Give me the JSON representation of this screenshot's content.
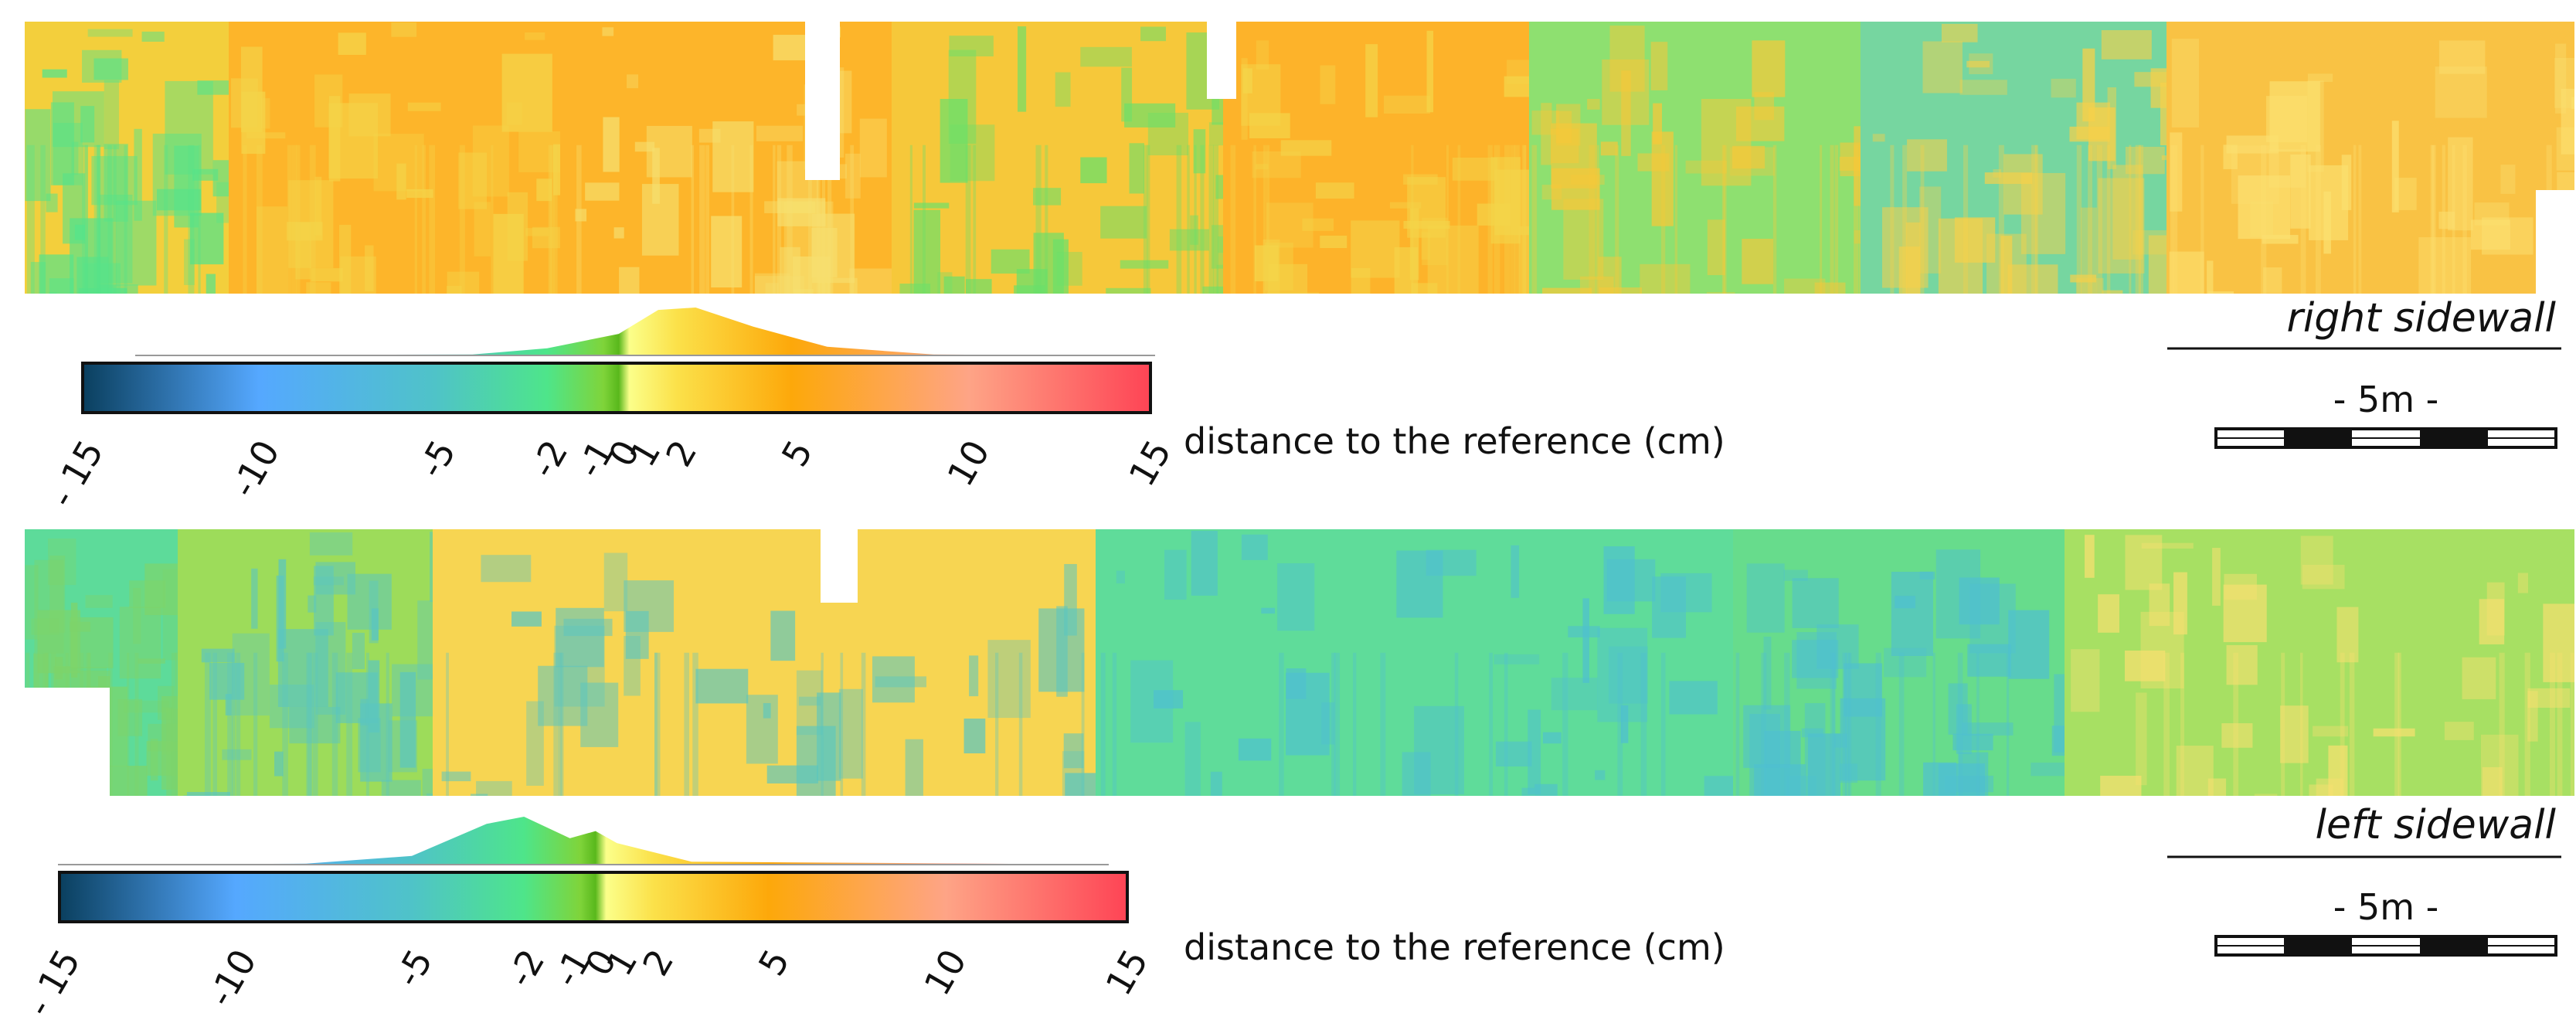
{
  "colorbar": {
    "label": "distance to the reference (cm)",
    "stops": [
      {
        "v": -15,
        "c": "#0a3f5e"
      },
      {
        "v": -10,
        "c": "#55a8ff"
      },
      {
        "v": -5,
        "c": "#4fc3c8"
      },
      {
        "v": -2,
        "c": "#4ee58a"
      },
      {
        "v": -0.6,
        "c": "#7fd43a"
      },
      {
        "v": 0,
        "c": "#59b81c"
      },
      {
        "v": 0.5,
        "c": "#fbff8a"
      },
      {
        "v": 2,
        "c": "#fbe14a"
      },
      {
        "v": 5,
        "c": "#fda80a"
      },
      {
        "v": 10,
        "c": "#fea486"
      },
      {
        "v": 15,
        "c": "#fe4455"
      }
    ],
    "ticks": [
      {
        "v": -15,
        "label": "- 15"
      },
      {
        "v": -10,
        "label": "-10"
      },
      {
        "v": -5,
        "label": "-5"
      },
      {
        "v": -2,
        "label": "-2"
      },
      {
        "v": -1,
        "label": "-1"
      },
      {
        "v": 0,
        "label": "0"
      },
      {
        "v": 1,
        "label": "1"
      },
      {
        "v": 2,
        "label": "2"
      },
      {
        "v": 5,
        "label": "5"
      },
      {
        "v": 10,
        "label": "10"
      },
      {
        "v": 15,
        "label": "15"
      }
    ]
  },
  "panels": [
    {
      "id": "right",
      "title": "right sidewall",
      "scale_label": "- 5m -",
      "segments": [
        {
          "from": 0,
          "to": 0.08,
          "fill": "#f3cf3c",
          "accent": "#57e38a"
        },
        {
          "from": 0.08,
          "to": 0.21,
          "fill": "#fdb52a",
          "accent": "#f4d54a"
        },
        {
          "from": 0.21,
          "to": 0.34,
          "fill": "#fdb52a",
          "accent": "#f6e070"
        },
        {
          "from": 0.34,
          "to": 0.47,
          "fill": "#f6c83a",
          "accent": "#6be06a"
        },
        {
          "from": 0.47,
          "to": 0.59,
          "fill": "#fdb32a",
          "accent": "#f4d54a"
        },
        {
          "from": 0.59,
          "to": 0.72,
          "fill": "#8ee070",
          "accent": "#f6c83a"
        },
        {
          "from": 0.72,
          "to": 0.84,
          "fill": "#76d6a0",
          "accent": "#f6d04a"
        },
        {
          "from": 0.84,
          "to": 1.0,
          "fill": "#f9c244",
          "accent": "#fbe070"
        }
      ],
      "histogram": [
        {
          "v": -15,
          "h": 0.0
        },
        {
          "v": -4,
          "h": 0.02
        },
        {
          "v": -2,
          "h": 0.15
        },
        {
          "v": 0,
          "h": 0.45
        },
        {
          "v": 1.5,
          "h": 0.95
        },
        {
          "v": 2.5,
          "h": 1.0
        },
        {
          "v": 4,
          "h": 0.6
        },
        {
          "v": 6,
          "h": 0.18
        },
        {
          "v": 9,
          "h": 0.02
        },
        {
          "v": 15,
          "h": 0.0
        }
      ]
    },
    {
      "id": "left",
      "title": "left sidewall",
      "scale_label": "- 5m -",
      "segments": [
        {
          "from": 0,
          "to": 0.06,
          "fill": "#5ddb9a",
          "accent": "#7ed46a"
        },
        {
          "from": 0.06,
          "to": 0.16,
          "fill": "#9ddc5a",
          "accent": "#5bc6c0"
        },
        {
          "from": 0.16,
          "to": 0.42,
          "fill": "#f7d552",
          "accent": "#5bc6c0"
        },
        {
          "from": 0.42,
          "to": 0.67,
          "fill": "#5fdc9a",
          "accent": "#4fc0d0"
        },
        {
          "from": 0.67,
          "to": 0.8,
          "fill": "#67dc8c",
          "accent": "#4fc0d0"
        },
        {
          "from": 0.8,
          "to": 1.0,
          "fill": "#a7e063",
          "accent": "#f6e070"
        }
      ],
      "histogram": [
        {
          "v": -15,
          "h": 0.0
        },
        {
          "v": -8,
          "h": 0.02
        },
        {
          "v": -5,
          "h": 0.18
        },
        {
          "v": -3,
          "h": 0.85
        },
        {
          "v": -2,
          "h": 1.0
        },
        {
          "v": -1,
          "h": 0.55
        },
        {
          "v": 0,
          "h": 0.7
        },
        {
          "v": 1,
          "h": 0.45
        },
        {
          "v": 3,
          "h": 0.06
        },
        {
          "v": 15,
          "h": 0.0
        }
      ]
    }
  ]
}
